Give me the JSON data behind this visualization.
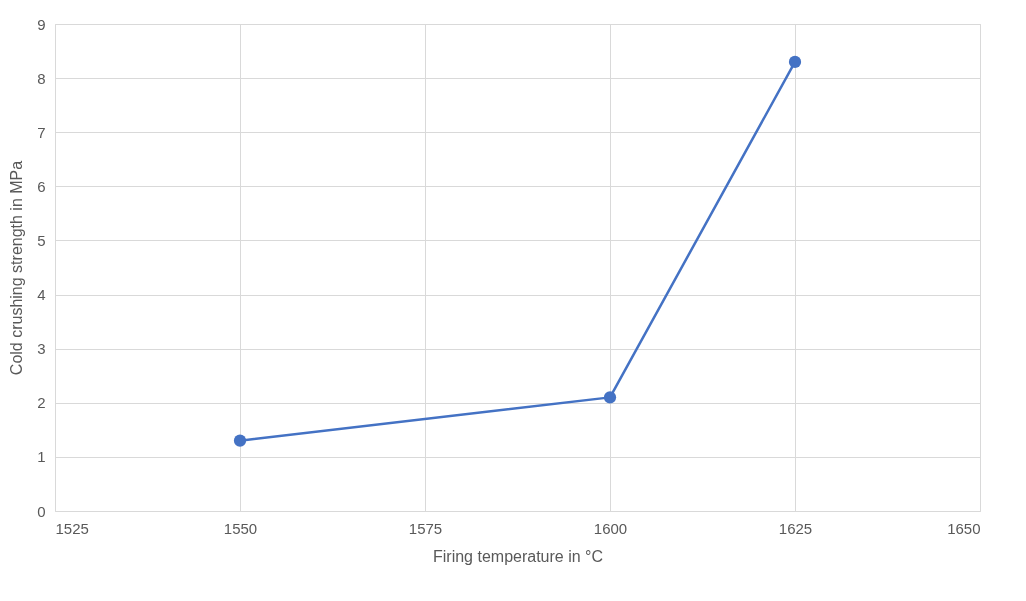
{
  "chart_data": {
    "type": "line",
    "xlabel": "Firing temperature in °C",
    "ylabel": "Cold crushing strength in MPa",
    "x": [
      1550,
      1600,
      1625
    ],
    "series": [
      {
        "color": "#4472c4",
        "values": [
          1.3,
          2.1,
          8.3
        ]
      }
    ],
    "xlim": [
      1525,
      1650
    ],
    "xticks": [
      1525,
      1550,
      1575,
      1600,
      1625,
      1650
    ],
    "ylim": [
      0,
      9
    ],
    "yticks": [
      0,
      1,
      2,
      3,
      4,
      5,
      6,
      7,
      8,
      9
    ],
    "grid": true,
    "marker": "circle",
    "line_style": "solid"
  }
}
